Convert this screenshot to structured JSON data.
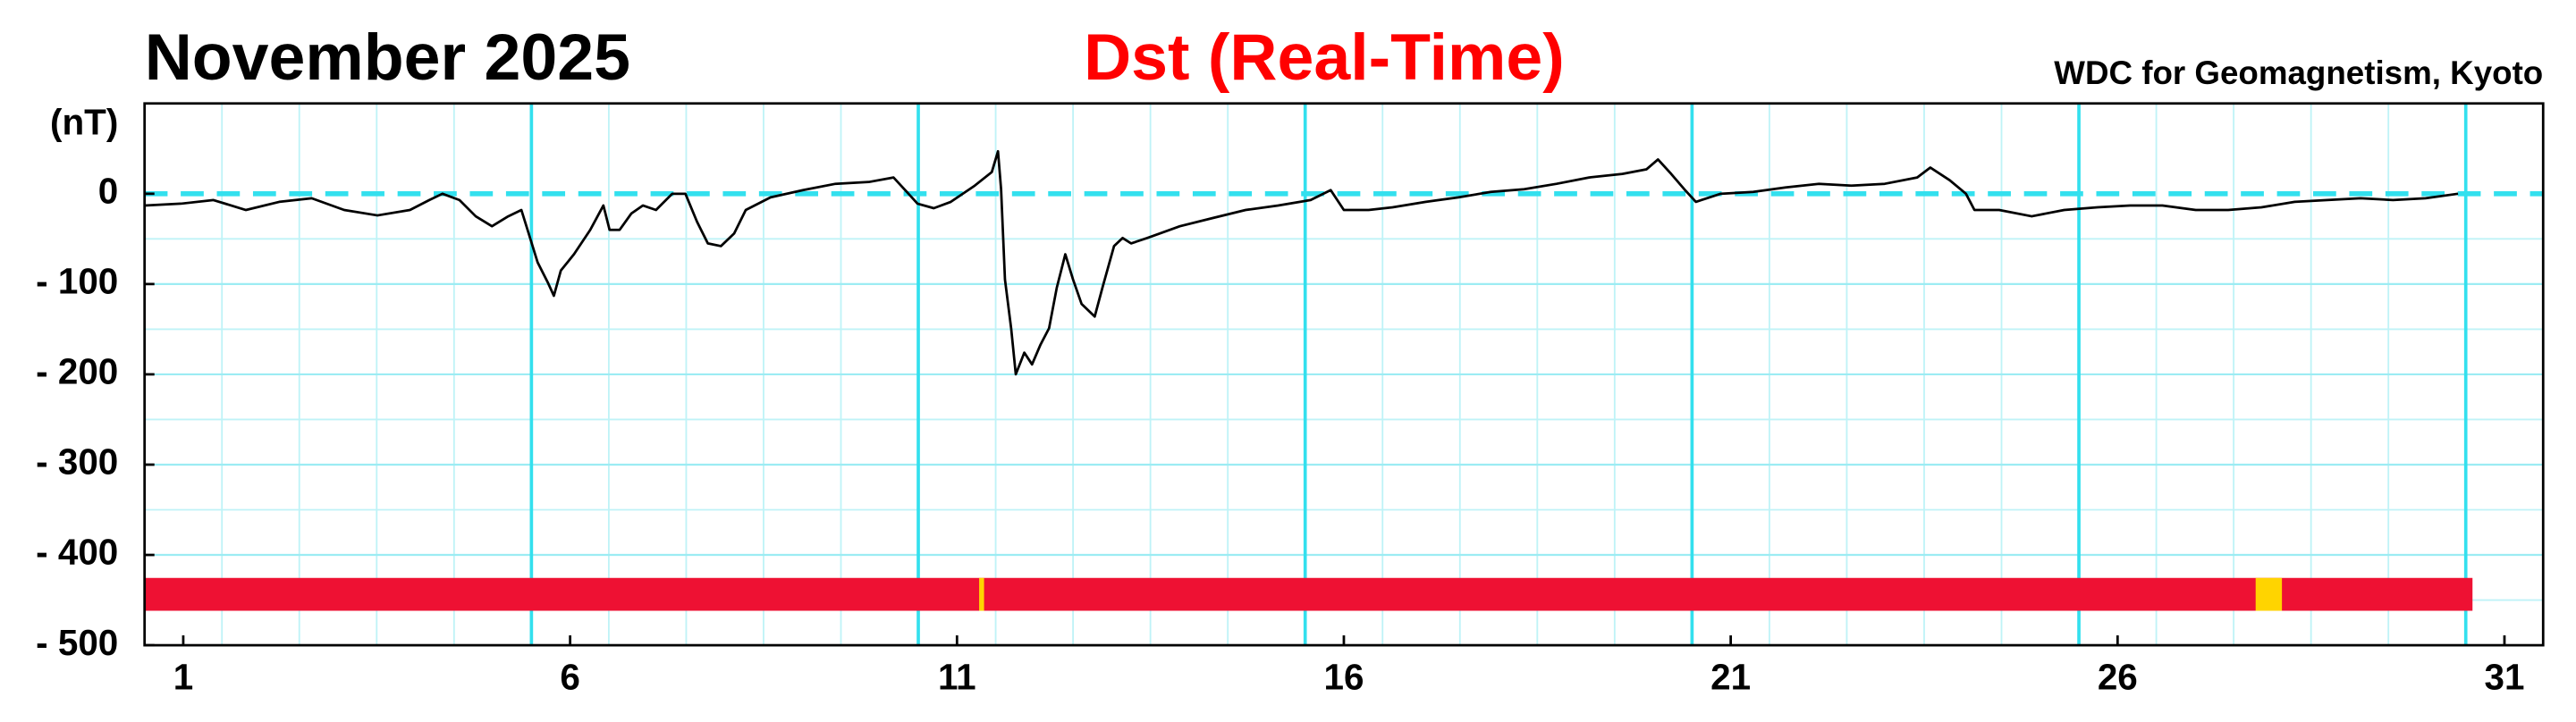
{
  "chart_data": {
    "type": "line",
    "subtitle": "November  2025",
    "title": "Dst (Real-Time)",
    "source": "WDC for Geomagnetism, Kyoto",
    "y_label": "(nT)",
    "xlim": [
      0.5,
      31.5
    ],
    "xticks": [
      1,
      6,
      11,
      16,
      21,
      26,
      31
    ],
    "ylim": [
      -500,
      100
    ],
    "yticks": [
      {
        "value": -500,
        "label": "- 500"
      },
      {
        "value": -400,
        "label": "- 400"
      },
      {
        "value": -300,
        "label": "- 300"
      },
      {
        "value": -200,
        "label": "- 200"
      },
      {
        "value": -100,
        "label": "- 100"
      },
      0
    ],
    "grid": true,
    "x": [
      0.5,
      0.97,
      1.39,
      1.81,
      2.24,
      2.66,
      3.08,
      3.51,
      3.93,
      4.18,
      4.35,
      4.57,
      4.78,
      4.99,
      5.2,
      5.37,
      5.45,
      5.58,
      5.71,
      5.79,
      5.88,
      6.05,
      6.26,
      6.43,
      6.51,
      6.64,
      6.79,
      6.94,
      7.11,
      7.32,
      7.49,
      7.64,
      7.78,
      7.95,
      8.12,
      8.27,
      8.59,
      9.01,
      9.43,
      9.86,
      10.18,
      10.32,
      10.49,
      10.7,
      10.92,
      11.23,
      11.45,
      11.53,
      11.57,
      11.62,
      11.7,
      11.76,
      11.87,
      11.97,
      12.08,
      12.19,
      12.29,
      12.4,
      12.5,
      12.61,
      12.78,
      12.88,
      13.03,
      13.14,
      13.25,
      13.46,
      13.88,
      14.3,
      14.73,
      15.15,
      15.57,
      15.83,
      16.0,
      16.32,
      16.63,
      17.06,
      17.48,
      17.9,
      18.33,
      18.75,
      19.17,
      19.6,
      19.91,
      20.06,
      20.23,
      20.4,
      20.55,
      20.87,
      21.29,
      21.71,
      22.14,
      22.56,
      22.99,
      23.41,
      23.58,
      23.83,
      24.04,
      24.15,
      24.47,
      24.89,
      25.31,
      25.74,
      26.16,
      26.58,
      27.01,
      27.43,
      27.86,
      28.29,
      28.71,
      29.14,
      29.56,
      29.98,
      30.4
    ],
    "series": [
      {
        "color": "#000000",
        "values": [
          -13,
          -11,
          -7,
          -18,
          -9,
          -5,
          -18,
          -24,
          -18,
          -7,
          0,
          -7,
          -25,
          -36,
          -25,
          -18,
          -40,
          -76,
          -98,
          -113,
          -85,
          -67,
          -40,
          -13,
          -40,
          -40,
          -22,
          -13,
          -18,
          0,
          0,
          -31,
          -55,
          -58,
          -44,
          -18,
          -4,
          4,
          11,
          13,
          18,
          5,
          -11,
          -16,
          -9,
          9,
          24,
          47,
          5,
          -95,
          -149,
          -200,
          -176,
          -189,
          -167,
          -149,
          -104,
          -67,
          -95,
          -122,
          -136,
          -104,
          -58,
          -49,
          -55,
          -49,
          -36,
          -27,
          -18,
          -13,
          -7,
          4,
          -18,
          -18,
          -15,
          -9,
          -4,
          2,
          5,
          11,
          18,
          22,
          27,
          38,
          22,
          5,
          -9,
          0,
          2,
          7,
          11,
          9,
          11,
          18,
          29,
          15,
          0,
          -18,
          -18,
          -25,
          -18,
          -15,
          -13,
          -13,
          -18,
          -18,
          -15,
          -9,
          -7,
          -5,
          -7,
          -5,
          0
        ]
      }
    ]
  }
}
